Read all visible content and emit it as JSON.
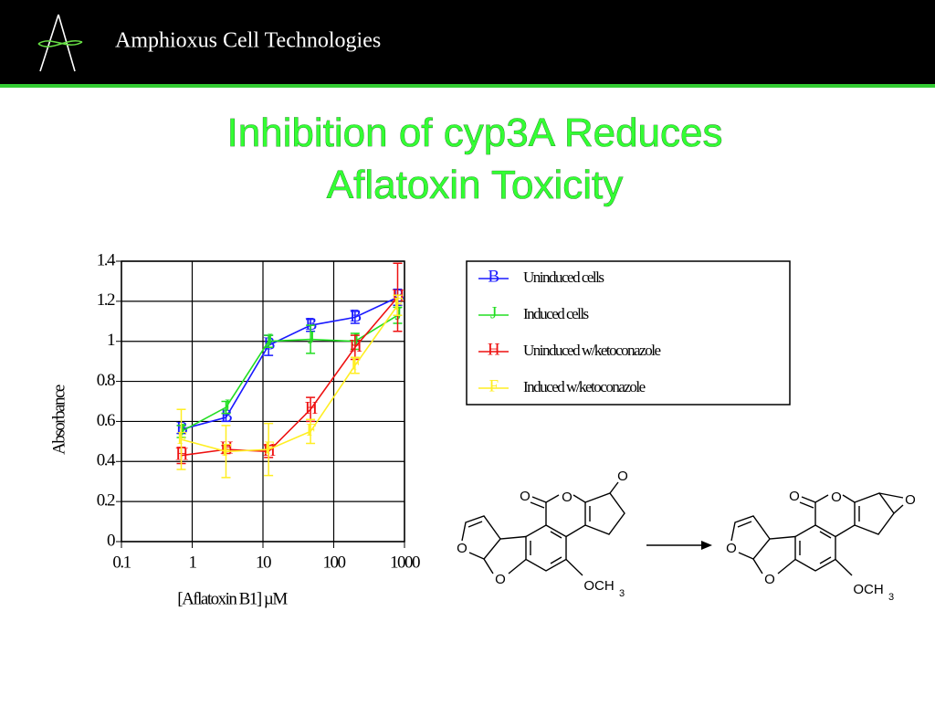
{
  "header": {
    "company": "Amphioxus Cell Technologies"
  },
  "title": [
    "Inhibition of cyp3A Reduces",
    "Aflatoxin Toxicity"
  ],
  "chart_data": {
    "type": "line",
    "y_label": "Absorbance",
    "x_label": "[Aflatoxin B1] µM",
    "x_scale": "log",
    "xlim": [
      0.1,
      1000
    ],
    "xticks": [
      0.1,
      1,
      10,
      100,
      1000
    ],
    "ylim": [
      0,
      1.4
    ],
    "yticks": [
      0,
      0.2,
      0.4,
      0.6,
      0.8,
      1,
      1.2,
      1.4
    ],
    "grid": true,
    "legend_position": "right",
    "x": [
      0.7,
      3,
      12,
      47,
      200,
      800
    ],
    "series": [
      {
        "name": "Uninduced cells",
        "color": "#1a1aff",
        "marker": "B",
        "values": [
          0.56,
          0.62,
          0.98,
          1.08,
          1.12,
          1.22
        ],
        "errors": [
          0.02,
          0.02,
          0.05,
          0.03,
          0.03,
          0.04
        ]
      },
      {
        "name": "Induced cells",
        "color": "#22dd22",
        "marker": "J",
        "values": [
          0.55,
          0.67,
          1.0,
          1.01,
          1.0,
          1.13
        ],
        "errors": [
          0.03,
          0.03,
          0.03,
          0.07,
          0.04,
          0.04
        ]
      },
      {
        "name": "Uninduced w/ketoconazole",
        "color": "#ee1111",
        "marker": "H",
        "values": [
          0.43,
          0.46,
          0.45,
          0.66,
          0.97,
          1.22
        ],
        "errors": [
          0.04,
          0.02,
          0.03,
          0.06,
          0.06,
          0.17
        ]
      },
      {
        "name": "Induced w/ketoconazole",
        "color": "#ffee22",
        "marker": "F",
        "values": [
          0.51,
          0.45,
          0.46,
          0.55,
          0.88,
          1.18
        ],
        "errors": [
          0.15,
          0.13,
          0.13,
          0.06,
          0.04,
          0.05
        ]
      }
    ]
  },
  "reaction": {
    "substrate": {
      "atoms": [
        "O",
        "O",
        "O",
        "O",
        "O",
        "OCH"
      ],
      "subscript": "3"
    },
    "product": {
      "atoms": [
        "O",
        "O",
        "O",
        "O",
        "O",
        "OCH"
      ],
      "subscript": "3"
    }
  }
}
